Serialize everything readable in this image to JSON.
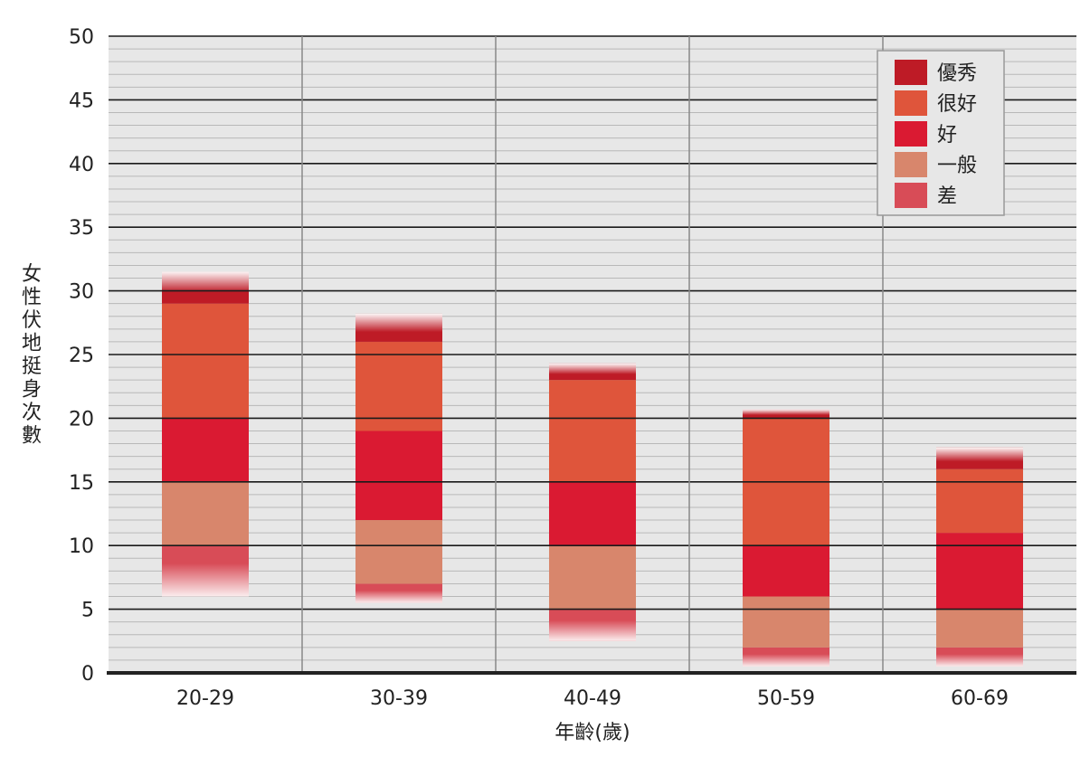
{
  "chart_data": {
    "type": "bar",
    "stacked": true,
    "title": "",
    "xlabel": "年齡(歲)",
    "ylabel": "女性伏地挺身次數",
    "ylim": [
      0,
      50
    ],
    "yticks": [
      0,
      5,
      10,
      15,
      20,
      25,
      30,
      35,
      40,
      45,
      50
    ],
    "grid": true,
    "legend_position": "top-right",
    "categories": [
      "20-29",
      "30-39",
      "40-49",
      "50-59",
      "60-69"
    ],
    "series": [
      {
        "name": "差",
        "color": "#d84c57",
        "bands": [
          [
            6,
            10
          ],
          [
            5.5,
            7
          ],
          [
            2.5,
            5
          ],
          [
            0.5,
            2
          ],
          [
            0.5,
            2
          ]
        ]
      },
      {
        "name": "一般",
        "color": "#d8866c",
        "bands": [
          [
            10,
            15
          ],
          [
            7,
            12
          ],
          [
            5,
            10
          ],
          [
            2,
            6
          ],
          [
            2,
            5
          ]
        ]
      },
      {
        "name": "好",
        "color": "#da1a32",
        "bands": [
          [
            15,
            20
          ],
          [
            12,
            19
          ],
          [
            10,
            15
          ],
          [
            6,
            10
          ],
          [
            5,
            11
          ]
        ]
      },
      {
        "name": "很好",
        "color": "#df553b",
        "bands": [
          [
            20,
            29
          ],
          [
            19,
            26
          ],
          [
            15,
            23
          ],
          [
            10,
            20
          ],
          [
            11,
            16
          ]
        ]
      },
      {
        "name": "優秀",
        "color": "#be1b26",
        "bands": [
          [
            29,
            31.5
          ],
          [
            26,
            28.2
          ],
          [
            23,
            24.3
          ],
          [
            20,
            20.7
          ],
          [
            16,
            17.7
          ]
        ]
      }
    ]
  }
}
